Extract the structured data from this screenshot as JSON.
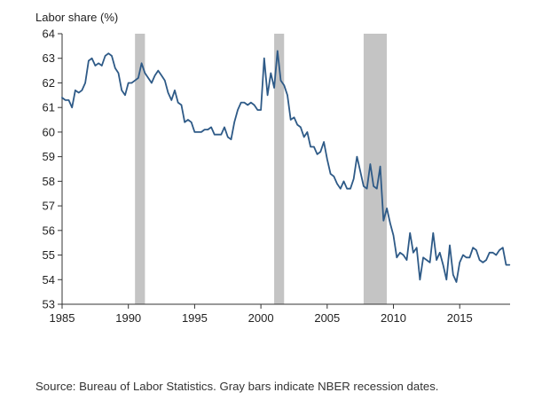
{
  "chart_data": {
    "type": "line",
    "ylabel": "Labor share (%)",
    "xlim": [
      1985,
      2018.8
    ],
    "ylim": [
      53,
      64
    ],
    "yticks": [
      53,
      54,
      55,
      56,
      57,
      58,
      59,
      60,
      61,
      62,
      63,
      64
    ],
    "xticks": [
      1985,
      1990,
      1995,
      2000,
      2005,
      2010,
      2015
    ],
    "grid": false,
    "line_color": "#2e5a87",
    "recession_color": "#c4c4c4",
    "recessions": [
      [
        1990.5,
        1991.25
      ],
      [
        2001.0,
        2001.75
      ],
      [
        2007.75,
        2009.5
      ]
    ],
    "series": [
      {
        "values": [
          [
            1985.0,
            61.4
          ],
          [
            1985.25,
            61.3
          ],
          [
            1985.5,
            61.3
          ],
          [
            1985.75,
            61.0
          ],
          [
            1986.0,
            61.7
          ],
          [
            1986.25,
            61.6
          ],
          [
            1986.5,
            61.7
          ],
          [
            1986.75,
            62.0
          ],
          [
            1987.0,
            62.9
          ],
          [
            1987.25,
            63.0
          ],
          [
            1987.5,
            62.7
          ],
          [
            1987.75,
            62.8
          ],
          [
            1988.0,
            62.7
          ],
          [
            1988.25,
            63.1
          ],
          [
            1988.5,
            63.2
          ],
          [
            1988.75,
            63.1
          ],
          [
            1989.0,
            62.6
          ],
          [
            1989.25,
            62.4
          ],
          [
            1989.5,
            61.7
          ],
          [
            1989.75,
            61.5
          ],
          [
            1990.0,
            62.0
          ],
          [
            1990.25,
            62.0
          ],
          [
            1990.5,
            62.1
          ],
          [
            1990.75,
            62.2
          ],
          [
            1991.0,
            62.8
          ],
          [
            1991.25,
            62.4
          ],
          [
            1991.5,
            62.2
          ],
          [
            1991.75,
            62.0
          ],
          [
            1992.0,
            62.3
          ],
          [
            1992.25,
            62.5
          ],
          [
            1992.5,
            62.3
          ],
          [
            1992.75,
            62.1
          ],
          [
            1993.0,
            61.6
          ],
          [
            1993.25,
            61.3
          ],
          [
            1993.5,
            61.7
          ],
          [
            1993.75,
            61.2
          ],
          [
            1994.0,
            61.1
          ],
          [
            1994.25,
            60.4
          ],
          [
            1994.5,
            60.5
          ],
          [
            1994.75,
            60.4
          ],
          [
            1995.0,
            60.0
          ],
          [
            1995.25,
            60.0
          ],
          [
            1995.5,
            60.0
          ],
          [
            1995.75,
            60.1
          ],
          [
            1996.0,
            60.1
          ],
          [
            1996.25,
            60.2
          ],
          [
            1996.5,
            59.9
          ],
          [
            1996.75,
            59.9
          ],
          [
            1997.0,
            59.9
          ],
          [
            1997.25,
            60.2
          ],
          [
            1997.5,
            59.8
          ],
          [
            1997.75,
            59.7
          ],
          [
            1998.0,
            60.4
          ],
          [
            1998.25,
            60.9
          ],
          [
            1998.5,
            61.2
          ],
          [
            1998.75,
            61.2
          ],
          [
            1999.0,
            61.1
          ],
          [
            1999.25,
            61.2
          ],
          [
            1999.5,
            61.1
          ],
          [
            1999.75,
            60.9
          ],
          [
            2000.0,
            60.9
          ],
          [
            2000.25,
            63.0
          ],
          [
            2000.5,
            61.5
          ],
          [
            2000.75,
            62.4
          ],
          [
            2001.0,
            61.8
          ],
          [
            2001.25,
            63.3
          ],
          [
            2001.5,
            62.1
          ],
          [
            2001.75,
            61.9
          ],
          [
            2002.0,
            61.5
          ],
          [
            2002.25,
            60.5
          ],
          [
            2002.5,
            60.6
          ],
          [
            2002.75,
            60.3
          ],
          [
            2003.0,
            60.2
          ],
          [
            2003.25,
            59.8
          ],
          [
            2003.5,
            60.0
          ],
          [
            2003.75,
            59.4
          ],
          [
            2004.0,
            59.4
          ],
          [
            2004.25,
            59.1
          ],
          [
            2004.5,
            59.2
          ],
          [
            2004.75,
            59.6
          ],
          [
            2005.0,
            58.9
          ],
          [
            2005.25,
            58.3
          ],
          [
            2005.5,
            58.2
          ],
          [
            2005.75,
            57.9
          ],
          [
            2006.0,
            57.7
          ],
          [
            2006.25,
            58.0
          ],
          [
            2006.5,
            57.7
          ],
          [
            2006.75,
            57.7
          ],
          [
            2007.0,
            58.1
          ],
          [
            2007.25,
            59.0
          ],
          [
            2007.5,
            58.4
          ],
          [
            2007.75,
            57.8
          ],
          [
            2008.0,
            57.7
          ],
          [
            2008.25,
            58.7
          ],
          [
            2008.5,
            57.8
          ],
          [
            2008.75,
            57.7
          ],
          [
            2009.0,
            58.6
          ],
          [
            2009.25,
            56.4
          ],
          [
            2009.5,
            56.9
          ],
          [
            2009.75,
            56.3
          ],
          [
            2010.0,
            55.8
          ],
          [
            2010.25,
            54.9
          ],
          [
            2010.5,
            55.1
          ],
          [
            2010.75,
            55.0
          ],
          [
            2011.0,
            54.8
          ],
          [
            2011.25,
            55.9
          ],
          [
            2011.5,
            55.1
          ],
          [
            2011.75,
            55.3
          ],
          [
            2012.0,
            54.0
          ],
          [
            2012.25,
            54.9
          ],
          [
            2012.5,
            54.8
          ],
          [
            2012.75,
            54.7
          ],
          [
            2013.0,
            55.9
          ],
          [
            2013.25,
            54.8
          ],
          [
            2013.5,
            55.1
          ],
          [
            2013.75,
            54.6
          ],
          [
            2014.0,
            54.0
          ],
          [
            2014.25,
            55.4
          ],
          [
            2014.5,
            54.2
          ],
          [
            2014.75,
            53.9
          ],
          [
            2015.0,
            54.7
          ],
          [
            2015.25,
            55.0
          ],
          [
            2015.5,
            54.9
          ],
          [
            2015.75,
            54.9
          ],
          [
            2016.0,
            55.3
          ],
          [
            2016.25,
            55.2
          ],
          [
            2016.5,
            54.8
          ],
          [
            2016.75,
            54.7
          ],
          [
            2017.0,
            54.8
          ],
          [
            2017.25,
            55.1
          ],
          [
            2017.5,
            55.1
          ],
          [
            2017.75,
            55.0
          ],
          [
            2018.0,
            55.2
          ],
          [
            2018.25,
            55.3
          ],
          [
            2018.5,
            54.6
          ],
          [
            2018.75,
            54.6
          ]
        ]
      }
    ]
  },
  "source_note": "Source: Bureau of Labor Statistics. Gray bars indicate NBER recession dates."
}
